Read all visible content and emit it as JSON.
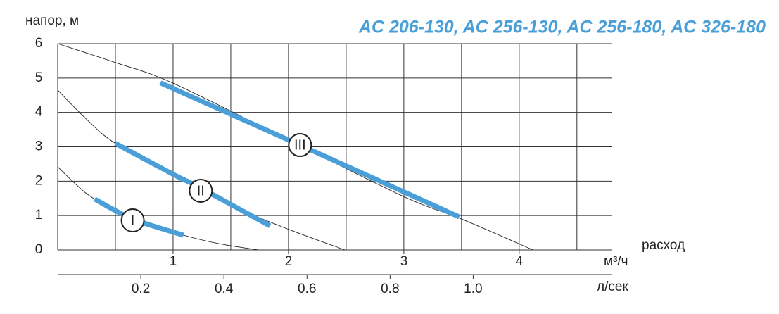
{
  "chart_data": {
    "type": "line",
    "title": "AC 206-130, AC 256-130, AC 256-180, AC 326-180",
    "y_label": "напор, м",
    "x_label": "расход",
    "x_unit": "м³/ч",
    "x2_unit": "л/сек",
    "xlim": [
      0,
      4.8
    ],
    "xticks": [
      1,
      2,
      3,
      4
    ],
    "x_grid": [
      0.5,
      1,
      1.5,
      2,
      2.5,
      3,
      3.5,
      4,
      4.5
    ],
    "x2lim": [
      0,
      1.333
    ],
    "x2ticks": [
      0.2,
      0.4,
      0.6,
      0.8,
      {
        "value": 1.0,
        "label": "1.0"
      }
    ],
    "ylim": [
      0,
      6
    ],
    "yticks": [
      0,
      1,
      2,
      3,
      4,
      5,
      6
    ],
    "grid": true,
    "series": [
      {
        "name": "I",
        "color": "#4a9fd8",
        "x": [
          0.32,
          0.65,
          1.09
        ],
        "values": [
          1.48,
          0.9,
          0.43
        ],
        "label_at": [
          0.65,
          0.86
        ]
      },
      {
        "name": "II",
        "color": "#4a9fd8",
        "x": [
          0.5,
          1.0,
          1.24,
          1.84
        ],
        "values": [
          3.1,
          2.2,
          1.8,
          0.7
        ],
        "label_at": [
          1.24,
          1.72
        ]
      },
      {
        "name": "III",
        "color": "#4a9fd8",
        "x": [
          0.89,
          2.1,
          3.48
        ],
        "values": [
          4.86,
          3.05,
          0.96
        ],
        "label_at": [
          2.1,
          3.05
        ]
      }
    ],
    "curves": [
      {
        "x": [
          0,
          0.16,
          0.32,
          0.65,
          1.09,
          1.4,
          1.74
        ],
        "values": [
          2.42,
          1.9,
          1.48,
          0.9,
          0.43,
          0.18,
          0
        ]
      },
      {
        "x": [
          0,
          0.25,
          0.5,
          1.0,
          1.5,
          2.0,
          2.49
        ],
        "values": [
          4.65,
          3.8,
          3.1,
          2.2,
          1.3,
          0.6,
          0
        ]
      },
      {
        "x": [
          0,
          0.5,
          1.0,
          2.0,
          3.0,
          3.5,
          4.12
        ],
        "values": [
          6,
          5.45,
          4.85,
          3.2,
          1.55,
          0.9,
          0
        ]
      }
    ]
  }
}
